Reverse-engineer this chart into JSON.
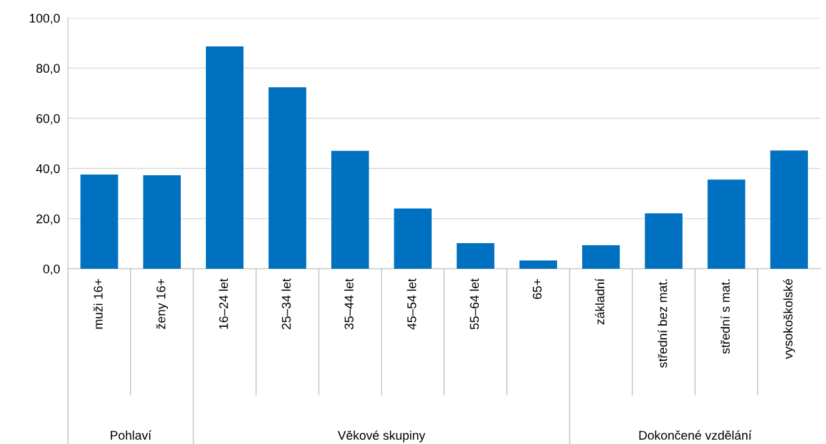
{
  "chart_data": {
    "type": "bar",
    "categories": [
      "muži 16+",
      "ženy 16+",
      "16–24 let",
      "25–34 let",
      "35–44 let",
      "45–54 let",
      "55–64 let",
      "65+",
      "základní",
      "střední bez mat.",
      "střední s mat.",
      "vysokoškolské"
    ],
    "values": [
      37.6,
      37.3,
      88.7,
      72.4,
      47.0,
      24.0,
      10.2,
      3.3,
      9.4,
      22.1,
      35.6,
      47.2
    ],
    "color": "#0070c0",
    "ylim": [
      0,
      100
    ],
    "yticks": [
      {
        "value": 0,
        "label": "0,0"
      },
      {
        "value": 20,
        "label": "20,0"
      },
      {
        "value": 40,
        "label": "40,0"
      },
      {
        "value": 60,
        "label": "60,0"
      },
      {
        "value": 80,
        "label": "80,0"
      },
      {
        "value": 100,
        "label": "100,0"
      }
    ],
    "grid": "y",
    "annotations": [
      "Pohlaví",
      "Věkové skupiny",
      "Dokončené vzdělání"
    ]
  }
}
